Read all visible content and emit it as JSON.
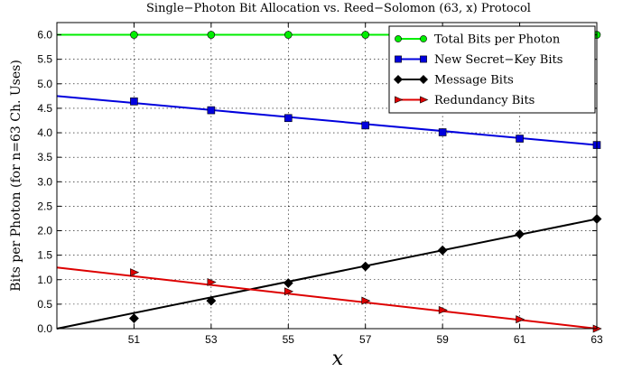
{
  "chart_data": {
    "type": "line",
    "title": "Single−Photon Bit Allocation vs. Reed−Solomon (63, x) Protocol",
    "xlabel": "x",
    "ylabel": "Bits per Photon (for n=63 Ch. Uses)",
    "xlim": [
      49,
      63
    ],
    "ylim": [
      0,
      6.25
    ],
    "xticks": [
      "51",
      "53",
      "55",
      "57",
      "59",
      "61",
      "63"
    ],
    "yticks": [
      "0.0",
      "0.5",
      "1.0",
      "1.5",
      "2.0",
      "2.5",
      "3.0",
      "3.5",
      "4.0",
      "4.5",
      "5.0",
      "5.5",
      "6.0"
    ],
    "grid": true,
    "legend_position": "top-right",
    "x": [
      51,
      53,
      55,
      57,
      59,
      61,
      63
    ],
    "series": [
      {
        "name": "Total Bits per Photon",
        "color": "#00ee00",
        "marker": "circle",
        "line_x": [
          49,
          63
        ],
        "line_y": [
          6.0,
          6.0
        ],
        "values": [
          6.0,
          6.0,
          6.0,
          6.0,
          6.0,
          6.0,
          6.0
        ]
      },
      {
        "name": "New Secret−Key Bits",
        "color": "#0000dd",
        "marker": "square",
        "line_x": [
          49,
          63
        ],
        "line_y": [
          4.75,
          3.75
        ],
        "values": [
          4.64,
          4.46,
          4.3,
          4.15,
          4.01,
          3.88,
          3.75
        ]
      },
      {
        "name": "Message Bits",
        "color": "#000000",
        "marker": "diamond",
        "line_x": [
          49,
          63
        ],
        "line_y": [
          0.0,
          2.24
        ],
        "values": [
          0.21,
          0.57,
          0.93,
          1.27,
          1.6,
          1.93,
          2.24
        ]
      },
      {
        "name": "Redundancy Bits",
        "color": "#dd0000",
        "marker": "triangle-right",
        "line_x": [
          49,
          63
        ],
        "line_y": [
          1.25,
          0.0
        ],
        "values": [
          1.15,
          0.95,
          0.76,
          0.57,
          0.38,
          0.19,
          0.0
        ]
      }
    ]
  }
}
